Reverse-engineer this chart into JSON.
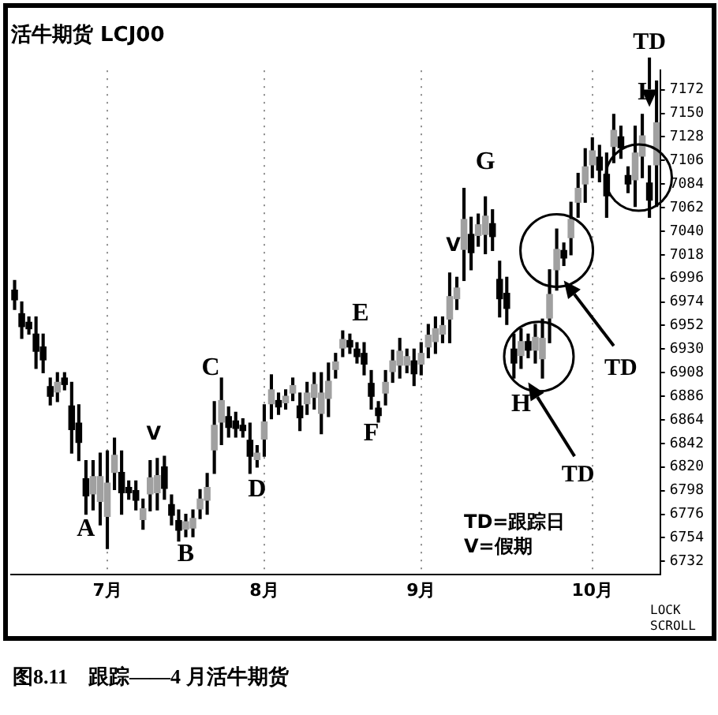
{
  "chart_data": {
    "type": "candlestick",
    "title": "活牛期货 LCJ00",
    "categories": [
      null,
      null,
      null,
      null,
      null,
      null,
      null,
      null,
      null,
      null,
      null,
      null,
      null,
      "7月",
      null,
      null,
      null,
      null,
      null,
      null,
      null,
      null,
      null,
      null,
      null,
      null,
      null,
      null,
      null,
      null,
      null,
      null,
      null,
      null,
      null,
      "8月",
      null,
      null,
      null,
      null,
      null,
      null,
      null,
      null,
      null,
      null,
      null,
      null,
      null,
      null,
      null,
      null,
      null,
      null,
      null,
      null,
      null,
      "9月",
      null,
      null,
      null,
      null,
      null,
      null,
      null,
      null,
      null,
      null,
      null,
      null,
      null,
      null,
      null,
      null,
      null,
      null,
      null,
      null,
      null,
      null,
      null,
      "10月",
      null,
      null,
      null,
      null,
      null,
      null,
      null,
      null,
      null
    ],
    "ohlc": [
      [
        6985,
        6994,
        6967,
        6976
      ],
      [
        6963,
        6974,
        6940,
        6951
      ],
      [
        6955,
        6960,
        6944,
        6949
      ],
      [
        6944,
        6960,
        6912,
        6928
      ],
      [
        6932,
        6944,
        6908,
        6920
      ],
      [
        6895,
        6903,
        6878,
        6886
      ],
      [
        6890,
        6908,
        6881,
        6899
      ],
      [
        6903,
        6908,
        6892,
        6897
      ],
      [
        6877,
        6899,
        6833,
        6855
      ],
      [
        6861,
        6878,
        6826,
        6843
      ],
      [
        6809,
        6826,
        6776,
        6793
      ],
      [
        6795,
        6826,
        6780,
        6811
      ],
      [
        6788,
        6833,
        6766,
        6811
      ],
      [
        6774,
        6835,
        6744,
        6805
      ],
      [
        6815,
        6847,
        6799,
        6831
      ],
      [
        6815,
        6835,
        6776,
        6796
      ],
      [
        6801,
        6807,
        6790,
        6796
      ],
      [
        6798,
        6807,
        6780,
        6789
      ],
      [
        6771,
        6790,
        6762,
        6781
      ],
      [
        6795,
        6826,
        6779,
        6810
      ],
      [
        6796,
        6828,
        6780,
        6812
      ],
      [
        6820,
        6830,
        6790,
        6800
      ],
      [
        6785,
        6794,
        6766,
        6775
      ],
      [
        6770,
        6780,
        6751,
        6761
      ],
      [
        6762,
        6776,
        6755,
        6769
      ],
      [
        6763,
        6780,
        6755,
        6772
      ],
      [
        6781,
        6799,
        6772,
        6790
      ],
      [
        6789,
        6814,
        6776,
        6801
      ],
      [
        6836,
        6881,
        6814,
        6859
      ],
      [
        6862,
        6903,
        6841,
        6882
      ],
      [
        6867,
        6876,
        6848,
        6857
      ],
      [
        6863,
        6871,
        6848,
        6856
      ],
      [
        6859,
        6865,
        6848,
        6854
      ],
      [
        6845,
        6861,
        6814,
        6830
      ],
      [
        6827,
        6840,
        6820,
        6833
      ],
      [
        6846,
        6878,
        6830,
        6862
      ],
      [
        6879,
        6906,
        6865,
        6892
      ],
      [
        6882,
        6889,
        6869,
        6876
      ],
      [
        6880,
        6892,
        6874,
        6886
      ],
      [
        6889,
        6903,
        6882,
        6896
      ],
      [
        6877,
        6889,
        6854,
        6866
      ],
      [
        6879,
        6899,
        6869,
        6889
      ],
      [
        6885,
        6908,
        6874,
        6897
      ],
      [
        6870,
        6908,
        6851,
        6889
      ],
      [
        6884,
        6917,
        6867,
        6900
      ],
      [
        6911,
        6926,
        6903,
        6918
      ],
      [
        6931,
        6947,
        6923,
        6939
      ],
      [
        6938,
        6944,
        6926,
        6932
      ],
      [
        6930,
        6936,
        6917,
        6923
      ],
      [
        6926,
        6936,
        6906,
        6916
      ],
      [
        6898,
        6910,
        6874,
        6886
      ],
      [
        6875,
        6881,
        6862,
        6868
      ],
      [
        6889,
        6910,
        6878,
        6899
      ],
      [
        6909,
        6929,
        6899,
        6919
      ],
      [
        6915,
        6940,
        6903,
        6928
      ],
      [
        6915,
        6930,
        6908,
        6923
      ],
      [
        6919,
        6930,
        6896,
        6907
      ],
      [
        6916,
        6936,
        6906,
        6926
      ],
      [
        6932,
        6953,
        6922,
        6943
      ],
      [
        6937,
        6960,
        6926,
        6949
      ],
      [
        6944,
        6960,
        6936,
        6952
      ],
      [
        6958,
        7001,
        6936,
        6979
      ],
      [
        6977,
        6997,
        6967,
        6987
      ],
      [
        7023,
        7080,
        6994,
        7051
      ],
      [
        7037,
        7053,
        7004,
        7020
      ],
      [
        7036,
        7056,
        7026,
        7046
      ],
      [
        7037,
        7072,
        7019,
        7054
      ],
      [
        7047,
        7060,
        7022,
        7035
      ],
      [
        6995,
        7012,
        6960,
        6977
      ],
      [
        6982,
        6997,
        6953,
        6968
      ],
      [
        6930,
        6944,
        6903,
        6917
      ],
      [
        6924,
        6949,
        6912,
        6937
      ],
      [
        6937,
        6944,
        6922,
        6929
      ],
      [
        6929,
        6953,
        6917,
        6941
      ],
      [
        6921,
        6958,
        6903,
        6940
      ],
      [
        6959,
        7004,
        6936,
        6981
      ],
      [
        7004,
        7042,
        6985,
        7023
      ],
      [
        7022,
        7029,
        7008,
        7015
      ],
      [
        7034,
        7067,
        7018,
        7051
      ],
      [
        7067,
        7094,
        7053,
        7080
      ],
      [
        7084,
        7117,
        7067,
        7100
      ],
      [
        7102,
        7127,
        7090,
        7115
      ],
      [
        7109,
        7120,
        7086,
        7097
      ],
      [
        7093,
        7113,
        7053,
        7073
      ],
      [
        7119,
        7149,
        7104,
        7134
      ],
      [
        7128,
        7138,
        7108,
        7118
      ],
      [
        7092,
        7100,
        7076,
        7084
      ],
      [
        7088,
        7138,
        7063,
        7113
      ],
      [
        7110,
        7149,
        7090,
        7129
      ],
      [
        7085,
        7101,
        7053,
        7069
      ],
      [
        7102,
        7180,
        7063,
        7141
      ]
    ],
    "color": "#000000",
    "colors": [
      "#000000",
      "#000000",
      "#000000",
      "#000000",
      "#000000",
      "#000000",
      "#a0a0a0",
      "#000000",
      "#000000",
      "#000000",
      "#000000",
      "#a0a0a0",
      "#a0a0a0",
      "#a0a0a0",
      "#a0a0a0",
      "#000000",
      "#000000",
      "#000000",
      "#a0a0a0",
      "#a0a0a0",
      "#a0a0a0",
      "#000000",
      "#000000",
      "#000000",
      "#a0a0a0",
      "#a0a0a0",
      "#a0a0a0",
      "#a0a0a0",
      "#a0a0a0",
      "#a0a0a0",
      "#000000",
      "#000000",
      "#000000",
      "#000000",
      "#a0a0a0",
      "#a0a0a0",
      "#a0a0a0",
      "#000000",
      "#a0a0a0",
      "#a0a0a0",
      "#000000",
      "#a0a0a0",
      "#a0a0a0",
      "#a0a0a0",
      "#a0a0a0",
      "#a0a0a0",
      "#a0a0a0",
      "#000000",
      "#000000",
      "#000000",
      "#000000",
      "#000000",
      "#a0a0a0",
      "#a0a0a0",
      "#a0a0a0",
      "#a0a0a0",
      "#000000",
      "#a0a0a0",
      "#a0a0a0",
      "#a0a0a0",
      "#a0a0a0",
      "#a0a0a0",
      "#a0a0a0",
      "#a0a0a0",
      "#000000",
      "#a0a0a0",
      "#a0a0a0",
      "#000000",
      "#000000",
      "#000000",
      "#000000",
      "#a0a0a0",
      "#000000",
      "#a0a0a0",
      "#a0a0a0",
      "#a0a0a0",
      "#a0a0a0",
      "#000000",
      "#a0a0a0",
      "#a0a0a0",
      "#a0a0a0",
      "#a0a0a0",
      "#000000",
      "#000000",
      "#a0a0a0",
      "#000000",
      "#000000",
      "#a0a0a0",
      "#a0a0a0",
      "#000000",
      "#a0a0a0"
    ],
    "ylim": [
      6720,
      7190
    ],
    "yticks": [
      6732,
      6754,
      6776,
      6798,
      6820,
      6842,
      6864,
      6886,
      6908,
      6930,
      6952,
      6974,
      6996,
      7018,
      7040,
      7062,
      7084,
      7106,
      7128,
      7150,
      7172
    ],
    "grid": "x",
    "annotations": [
      "A",
      "B",
      "C",
      "D",
      "E",
      "F",
      "G",
      "H",
      "I",
      "V",
      "V",
      "TD",
      "TD",
      "TD",
      "TD=跟踪日",
      "V=假期",
      "LOCK SCROLL",
      "图8.11　跟踪——4 月活牛期货"
    ]
  }
}
